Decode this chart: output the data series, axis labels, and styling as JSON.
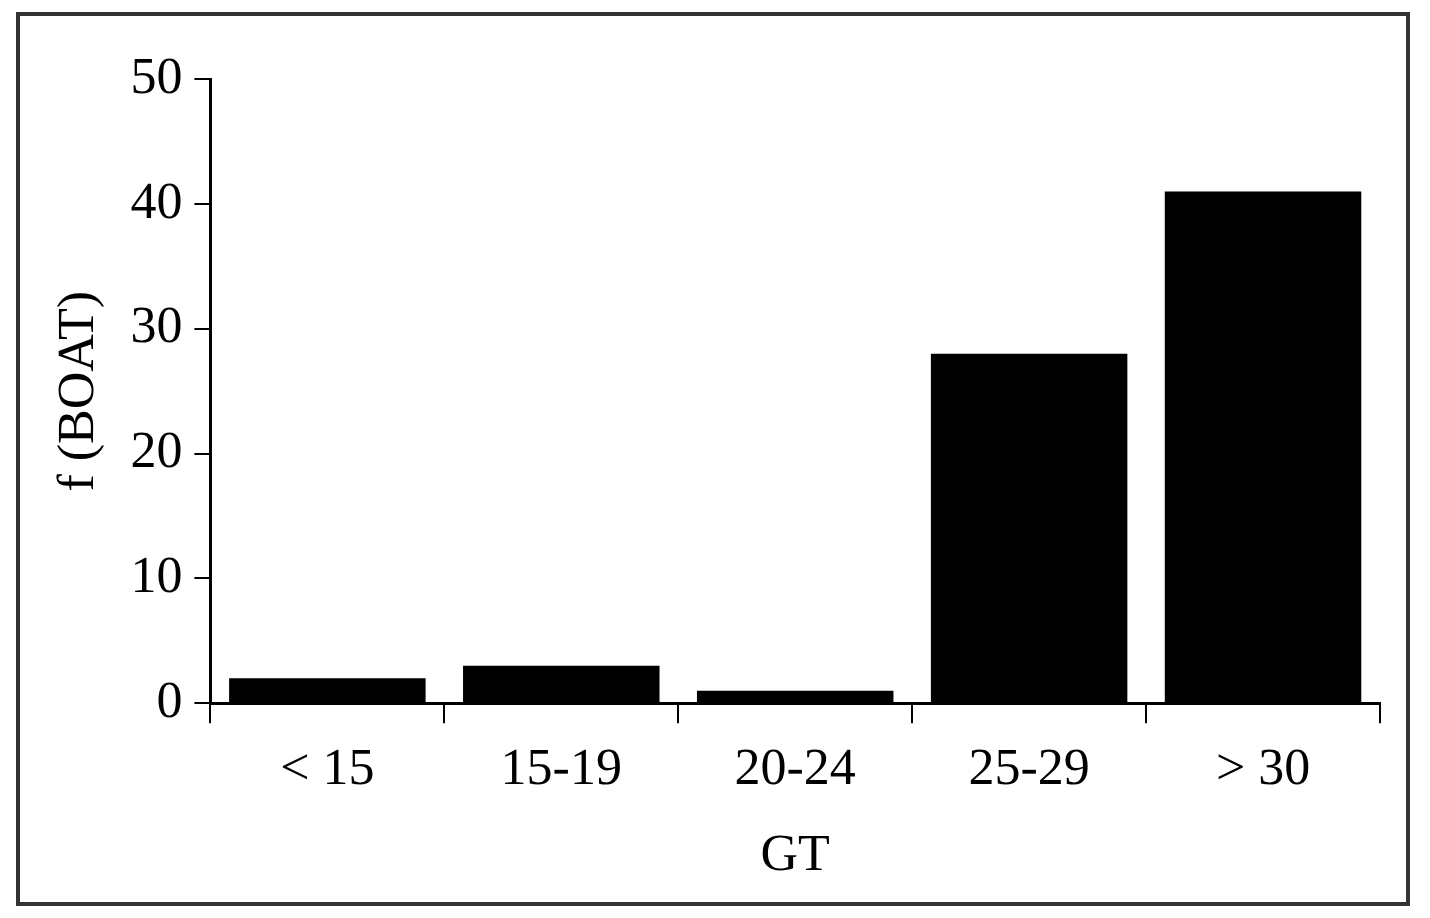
{
  "chart_data": {
    "type": "bar",
    "xlabel": "GT",
    "ylabel": "f (BOAT)",
    "categories": [
      "< 15",
      "15-19",
      "20-24",
      "25-29",
      "> 30"
    ],
    "values": [
      2,
      3,
      1,
      28,
      41
    ],
    "color": "#000000",
    "ylim": [
      0,
      50
    ],
    "yticks": [
      0,
      10,
      20,
      30,
      40,
      50
    ],
    "grid": false,
    "legend": false
  }
}
